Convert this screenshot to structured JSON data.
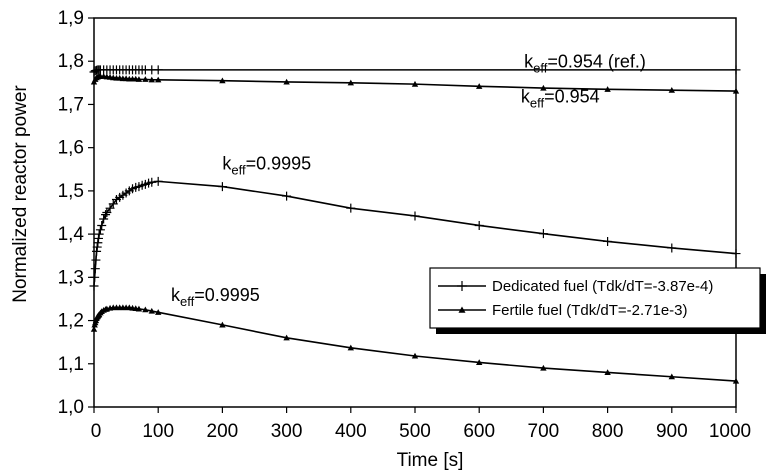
{
  "chart_data": {
    "type": "line",
    "title": "",
    "xlabel": "Time [s]",
    "ylabel": "Normalized reactor power",
    "xlim": [
      0,
      1000
    ],
    "ylim": [
      1.0,
      1.9
    ],
    "x_tick_labels": [
      "0",
      "100",
      "200",
      "300",
      "400",
      "500",
      "600",
      "700",
      "800",
      "900",
      "1000"
    ],
    "y_tick_labels": [
      "1,0",
      "1,1",
      "1,2",
      "1,3",
      "1,4",
      "1,5",
      "1,6",
      "1,7",
      "1,8",
      "1,9"
    ],
    "grid": false,
    "legend_position": "right-center",
    "legend": [
      {
        "label": "Dedicated fuel (Tdk/dT=-3.87e-4)",
        "marker": "plus"
      },
      {
        "label": "Fertile fuel (Tdk/dT=-2.71e-3)",
        "marker": "triangle"
      }
    ],
    "annotations": [
      {
        "base": "k",
        "sub": "eff",
        "value": "=0.954 (ref.)",
        "x": 670,
        "y": 1.785
      },
      {
        "base": "k",
        "sub": "eff",
        "value": "=0.954",
        "x": 665,
        "y": 1.705
      },
      {
        "base": "k",
        "sub": "eff",
        "value": "=0.9995",
        "x": 200,
        "y": 1.55
      },
      {
        "base": "k",
        "sub": "eff",
        "value": "=0.9995",
        "x": 120,
        "y": 1.245
      }
    ],
    "series": [
      {
        "label": "keff=0.954 (ref.)",
        "marker": "plus",
        "x": [
          0,
          2,
          4,
          6,
          8,
          10,
          15,
          20,
          25,
          30,
          35,
          40,
          45,
          50,
          55,
          60,
          65,
          70,
          75,
          80,
          90,
          100,
          1000
        ],
        "y": [
          1.775,
          1.778,
          1.779,
          1.78,
          1.78,
          1.78,
          1.78,
          1.78,
          1.78,
          1.78,
          1.78,
          1.78,
          1.78,
          1.78,
          1.78,
          1.78,
          1.78,
          1.78,
          1.78,
          1.78,
          1.78,
          1.78,
          1.78
        ]
      },
      {
        "label": "keff=0.954",
        "marker": "triangle",
        "x": [
          0,
          2,
          4,
          6,
          8,
          10,
          15,
          20,
          25,
          30,
          35,
          40,
          45,
          50,
          55,
          60,
          65,
          70,
          80,
          90,
          100,
          200,
          300,
          400,
          500,
          600,
          700,
          800,
          900,
          1000
        ],
        "y": [
          1.752,
          1.758,
          1.762,
          1.764,
          1.765,
          1.765,
          1.765,
          1.764,
          1.763,
          1.762,
          1.761,
          1.761,
          1.76,
          1.76,
          1.759,
          1.759,
          1.759,
          1.758,
          1.758,
          1.757,
          1.757,
          1.755,
          1.752,
          1.75,
          1.747,
          1.742,
          1.738,
          1.735,
          1.733,
          1.731
        ]
      },
      {
        "label": "Dedicated fuel keff=0.9995",
        "marker": "plus",
        "x": [
          0,
          1,
          2,
          3,
          4,
          5,
          6,
          7,
          8,
          10,
          12,
          15,
          18,
          20,
          25,
          30,
          35,
          40,
          45,
          50,
          55,
          60,
          65,
          70,
          75,
          80,
          85,
          90,
          100,
          200,
          300,
          400,
          500,
          600,
          700,
          800,
          900,
          1000
        ],
        "y": [
          1.28,
          1.3,
          1.32,
          1.34,
          1.36,
          1.37,
          1.38,
          1.39,
          1.4,
          1.41,
          1.42,
          1.435,
          1.445,
          1.45,
          1.46,
          1.47,
          1.48,
          1.485,
          1.49,
          1.495,
          1.5,
          1.505,
          1.508,
          1.51,
          1.513,
          1.515,
          1.518,
          1.52,
          1.522,
          1.51,
          1.488,
          1.46,
          1.442,
          1.42,
          1.401,
          1.383,
          1.368,
          1.355
        ]
      },
      {
        "label": "Fertile fuel keff=0.9995",
        "marker": "triangle",
        "x": [
          0,
          1,
          2,
          3,
          4,
          5,
          6,
          7,
          8,
          10,
          12,
          15,
          18,
          20,
          25,
          30,
          35,
          40,
          45,
          50,
          55,
          60,
          65,
          70,
          80,
          90,
          100,
          200,
          300,
          400,
          500,
          600,
          700,
          800,
          900,
          1000
        ],
        "y": [
          1.18,
          1.19,
          1.195,
          1.2,
          1.205,
          1.208,
          1.21,
          1.212,
          1.214,
          1.218,
          1.221,
          1.224,
          1.226,
          1.227,
          1.229,
          1.23,
          1.23,
          1.23,
          1.23,
          1.23,
          1.23,
          1.229,
          1.228,
          1.227,
          1.225,
          1.222,
          1.219,
          1.19,
          1.16,
          1.137,
          1.118,
          1.103,
          1.09,
          1.08,
          1.07,
          1.06
        ]
      }
    ]
  }
}
